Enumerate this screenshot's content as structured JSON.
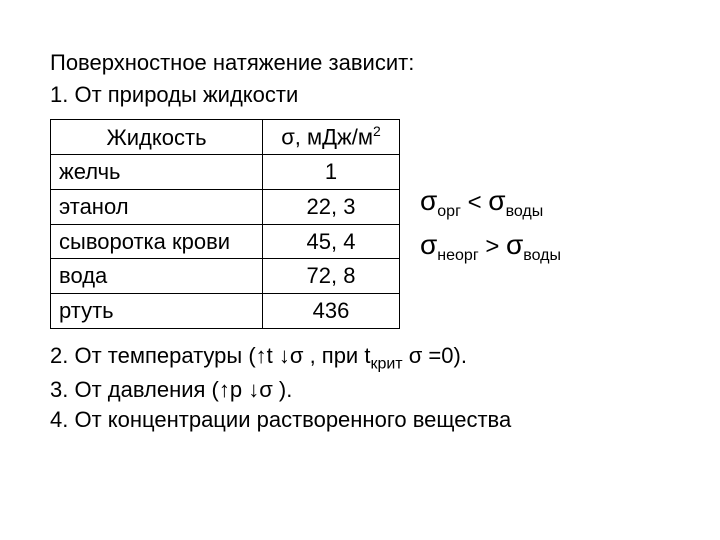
{
  "heading": {
    "line1": "Поверхностное натяжение зависит:",
    "line2": "1. От природы жидкости"
  },
  "table": {
    "header": {
      "liquid": "Жидкость",
      "sigma_prefix": "σ, мДж/м",
      "sigma_exp": "2"
    },
    "rows": [
      {
        "liquid": "желчь",
        "value": "1"
      },
      {
        "liquid": "этанол",
        "value": "22, 3"
      },
      {
        "liquid": "сыворотка крови",
        "value": "45, 4"
      },
      {
        "liquid": "вода",
        "value": "72, 8"
      },
      {
        "liquid": "ртуть",
        "value": "436"
      }
    ]
  },
  "inequalities": {
    "sigma": "σ",
    "sub_org": "орг",
    "sub_water": "воды",
    "sub_inorg": "неорг",
    "lt": " < ",
    "gt": " > "
  },
  "footer": {
    "line2_prefix": "2. От температуры (↑t  ↓σ , при t",
    "line2_sub": "крит",
    "line2_suffix": " σ =0).",
    "line3": "3. От давления (↑p  ↓σ ).",
    "line4": "4. От концентрации растворенного вещества"
  },
  "style": {
    "background_color": "#ffffff",
    "text_color": "#000000",
    "border_color": "#000000",
    "base_fontsize": 22,
    "sigma_fontsize": 28,
    "sub_fontsize": 16,
    "sup_fontsize": 14
  }
}
